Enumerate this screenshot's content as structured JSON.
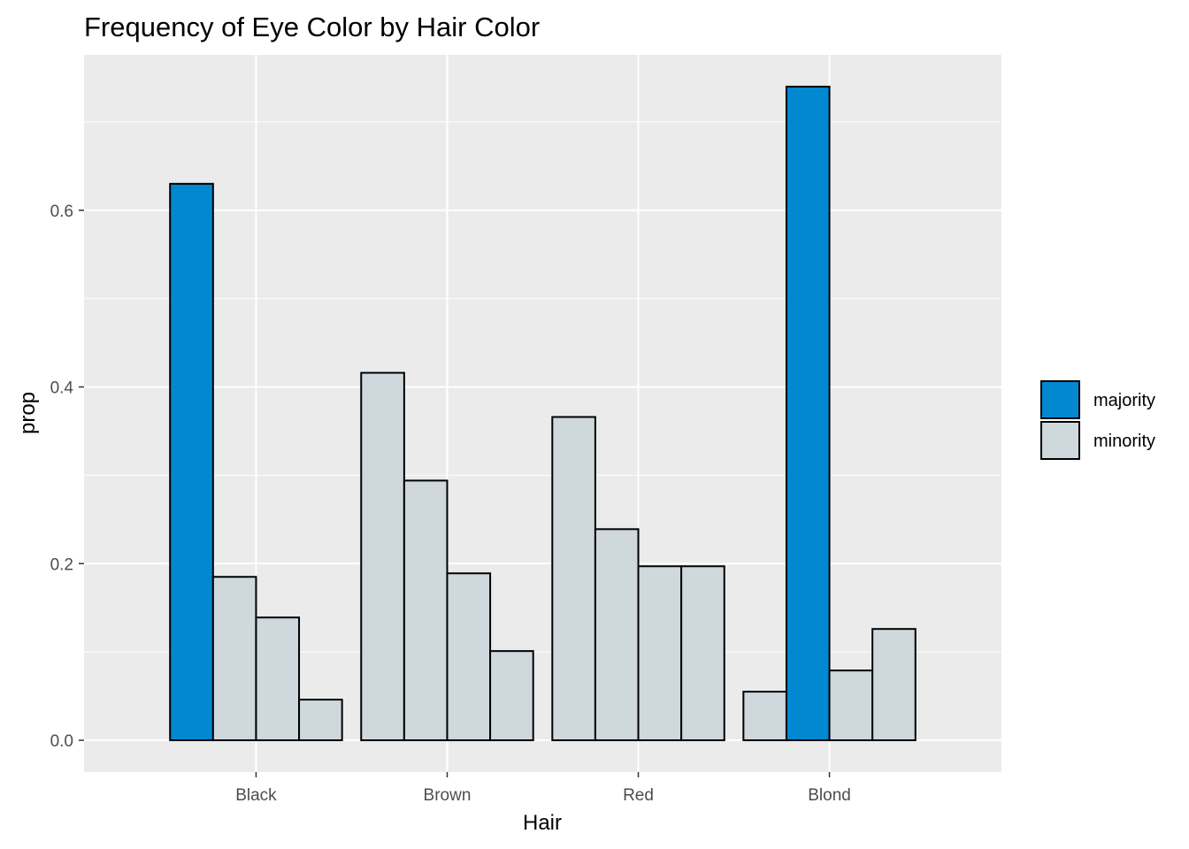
{
  "chart_data": {
    "type": "bar",
    "title": "Frequency of Eye Color by Hair Color",
    "xlabel": "Hair",
    "ylabel": "prop",
    "categories": [
      "Black",
      "Brown",
      "Red",
      "Blond"
    ],
    "ylim": [
      -0.036,
      0.776
    ],
    "yticks": [
      0.0,
      0.2,
      0.4,
      0.6
    ],
    "ytick_labels": [
      "0.0",
      "0.2",
      "0.4",
      "0.6"
    ],
    "bars_per_category": 4,
    "values": [
      [
        0.63,
        0.185,
        0.139,
        0.046
      ],
      [
        0.416,
        0.294,
        0.189,
        0.101
      ],
      [
        0.366,
        0.239,
        0.197,
        0.197
      ],
      [
        0.055,
        0.74,
        0.079,
        0.126
      ]
    ],
    "fill_groups": [
      [
        "majority",
        "minority",
        "minority",
        "minority"
      ],
      [
        "minority",
        "minority",
        "minority",
        "minority"
      ],
      [
        "minority",
        "minority",
        "minority",
        "minority"
      ],
      [
        "minority",
        "majority",
        "minority",
        "minority"
      ]
    ],
    "legend": {
      "placement": "right",
      "entries": [
        {
          "key": "majority",
          "label": "majority",
          "color": "#0288d1"
        },
        {
          "key": "minority",
          "label": "minority",
          "color": "#cfd8dc"
        }
      ]
    },
    "grid": true,
    "colors": {
      "panel_background": "#ebebeb",
      "grid_major": "#ffffff",
      "bar_outline": "#000000"
    }
  }
}
